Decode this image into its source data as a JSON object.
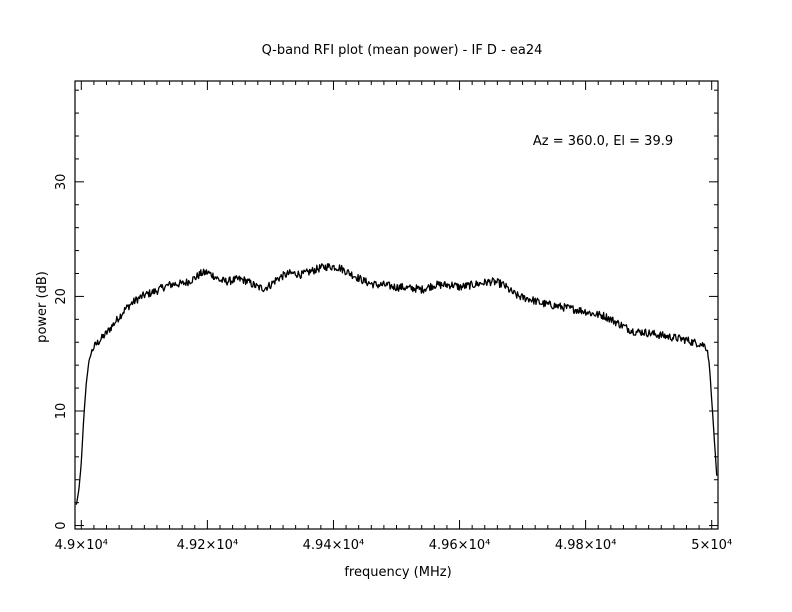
{
  "chart_data": {
    "type": "line",
    "title": "Q-band RFI plot (mean power) - IF D - ea24",
    "annotation": "Az = 360.0, El = 39.9",
    "xlabel": "frequency (MHz)",
    "ylabel": "power (dB)",
    "xlim": [
      48990,
      50010
    ],
    "ylim": [
      -0.3,
      38.8
    ],
    "x_ticks": [
      {
        "value": 49000,
        "label": "4.9×10⁴"
      },
      {
        "value": 49200,
        "label": "4.92×10⁴"
      },
      {
        "value": 49400,
        "label": "4.94×10⁴"
      },
      {
        "value": 49600,
        "label": "4.96×10⁴"
      },
      {
        "value": 49800,
        "label": "4.98×10⁴"
      },
      {
        "value": 50000,
        "label": "5×10⁴"
      }
    ],
    "y_ticks": [
      {
        "value": 0,
        "label": "0"
      },
      {
        "value": 10,
        "label": "10"
      },
      {
        "value": 20,
        "label": "20"
      },
      {
        "value": 30,
        "label": "30"
      }
    ],
    "grid": false,
    "series": [
      {
        "color": "#000000",
        "x": [
          48992,
          48996,
          49000,
          49004,
          49008,
          49012,
          49016,
          49020,
          49025,
          49030,
          49040,
          49050,
          49060,
          49070,
          49080,
          49090,
          49100,
          49110,
          49120,
          49130,
          49140,
          49150,
          49160,
          49170,
          49180,
          49190,
          49200,
          49210,
          49220,
          49230,
          49240,
          49250,
          49260,
          49270,
          49280,
          49290,
          49300,
          49310,
          49320,
          49330,
          49340,
          49350,
          49360,
          49370,
          49380,
          49390,
          49400,
          49410,
          49420,
          49430,
          49440,
          49450,
          49460,
          49470,
          49480,
          49490,
          49500,
          49510,
          49520,
          49530,
          49540,
          49550,
          49560,
          49570,
          49580,
          49590,
          49600,
          49610,
          49620,
          49630,
          49640,
          49650,
          49660,
          49670,
          49680,
          49690,
          49700,
          49710,
          49720,
          49730,
          49740,
          49750,
          49760,
          49770,
          49780,
          49790,
          49800,
          49810,
          49820,
          49830,
          49840,
          49850,
          49860,
          49870,
          49880,
          49890,
          49900,
          49910,
          49920,
          49930,
          49940,
          49950,
          49960,
          49970,
          49980,
          49990,
          49994,
          49997,
          50000,
          50003,
          50006,
          50008
        ],
        "y": [
          1.8,
          3.0,
          5.5,
          9.5,
          12.5,
          14.3,
          15.1,
          15.6,
          15.9,
          16.2,
          16.8,
          17.5,
          18.2,
          18.9,
          19.4,
          19.8,
          20.1,
          20.3,
          20.5,
          20.8,
          21.0,
          21.1,
          21.1,
          21.3,
          21.6,
          22.0,
          22.1,
          21.8,
          21.4,
          21.3,
          21.4,
          21.5,
          21.4,
          21.1,
          20.8,
          20.7,
          21.0,
          21.5,
          21.8,
          22.0,
          22.0,
          21.9,
          22.1,
          22.3,
          22.5,
          22.6,
          22.6,
          22.5,
          22.2,
          21.9,
          21.6,
          21.3,
          21.1,
          21.0,
          21.0,
          20.9,
          20.8,
          20.8,
          20.7,
          20.7,
          20.6,
          20.8,
          21.0,
          21.0,
          21.0,
          21.0,
          20.8,
          20.9,
          21.0,
          21.1,
          21.2,
          21.3,
          21.2,
          21.0,
          20.5,
          20.1,
          19.9,
          19.8,
          19.6,
          19.4,
          19.3,
          19.2,
          19.1,
          19.0,
          18.9,
          18.8,
          18.7,
          18.5,
          18.4,
          18.3,
          18.0,
          17.7,
          17.4,
          17.1,
          16.9,
          16.9,
          16.8,
          16.7,
          16.6,
          16.5,
          16.4,
          16.3,
          16.2,
          16.0,
          15.9,
          15.7,
          15.2,
          13.5,
          11.0,
          8.5,
          6.0,
          4.3
        ]
      }
    ]
  }
}
